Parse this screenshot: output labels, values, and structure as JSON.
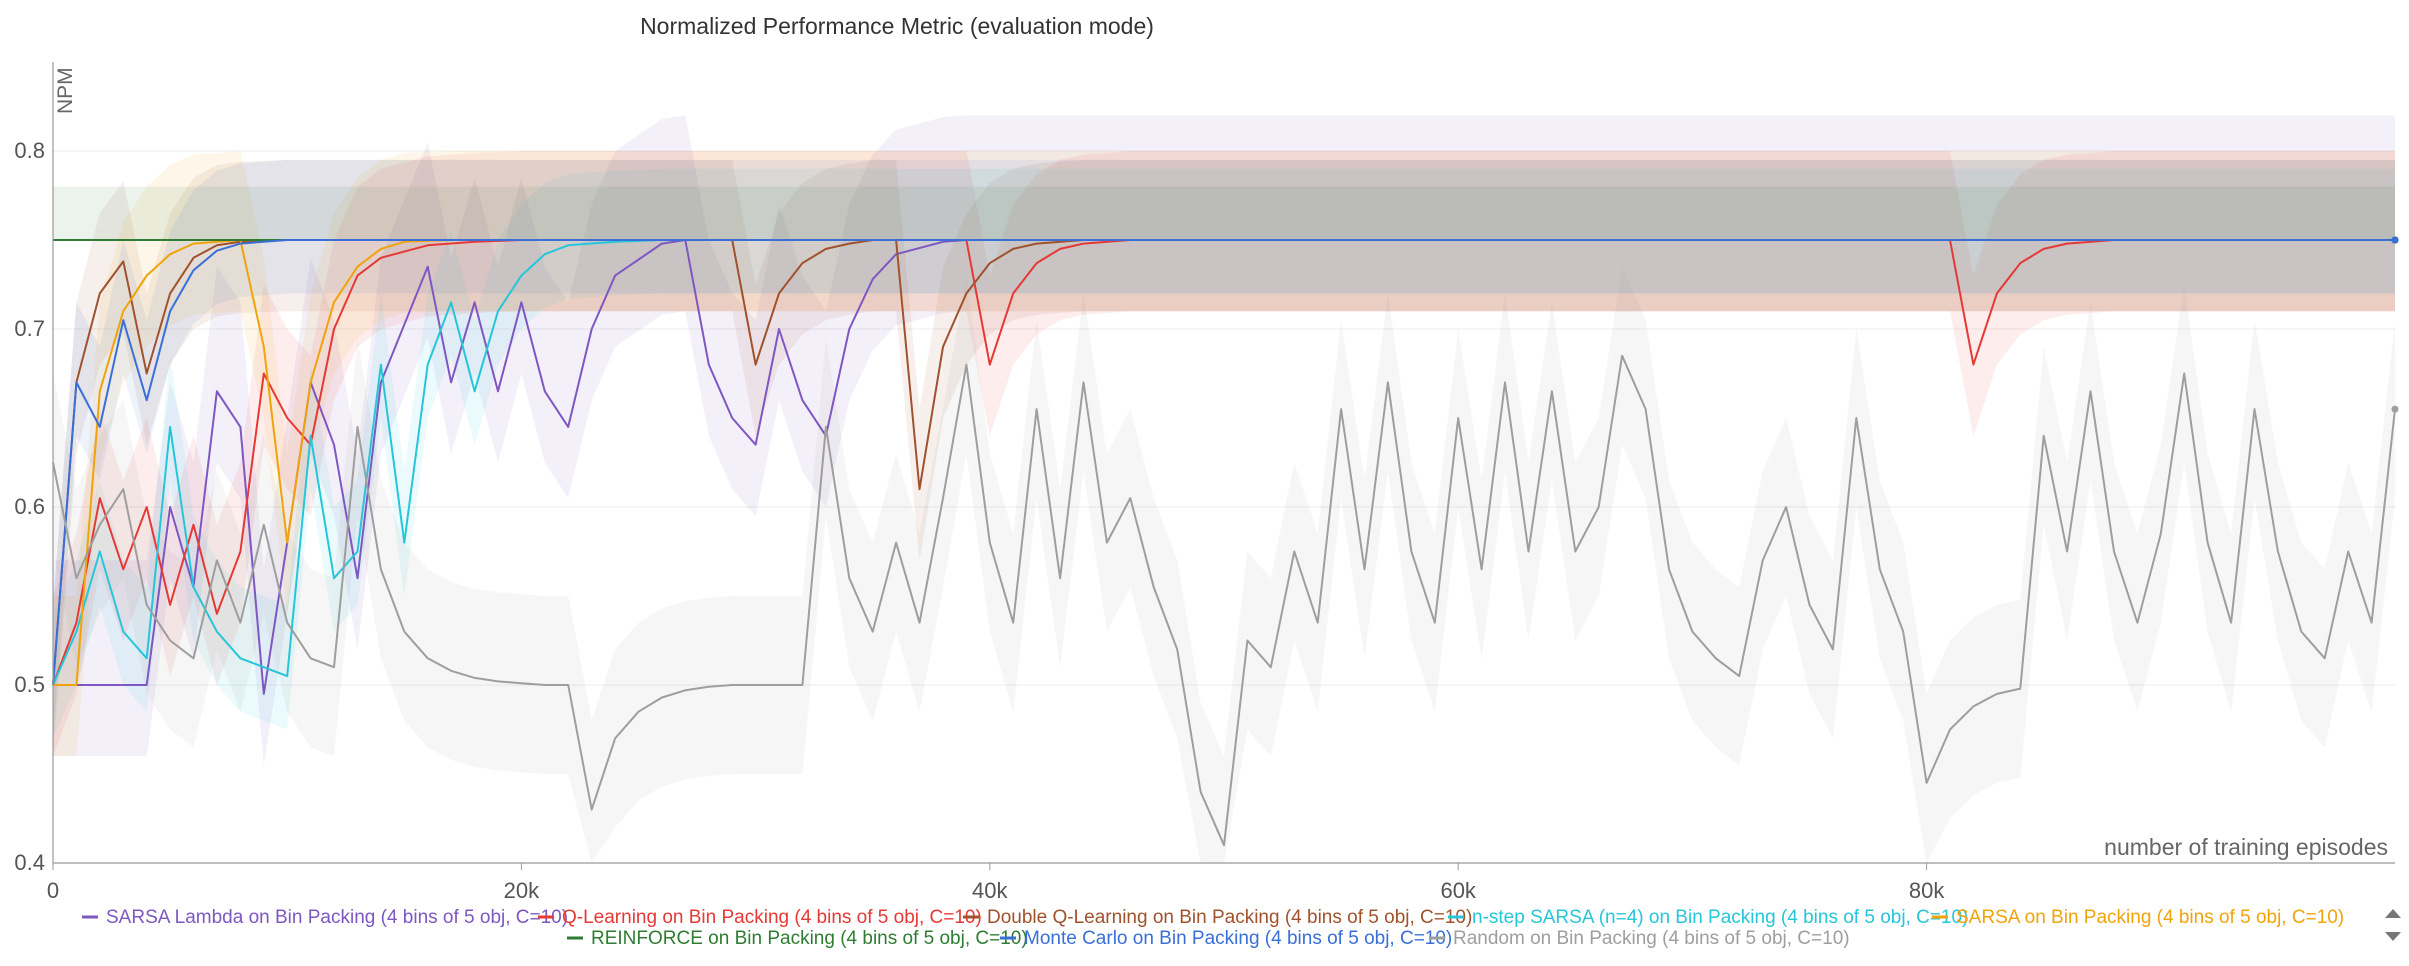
{
  "chart_data": {
    "type": "line",
    "title": "Normalized Performance Metric (evaluation mode)",
    "xlabel": "number of training episodes",
    "ylabel": "NPM",
    "xlim": [
      0,
      100000
    ],
    "ylim": [
      0.4,
      0.85
    ],
    "xticks": [
      0,
      20000,
      40000,
      60000,
      80000
    ],
    "xtick_labels": [
      "0",
      "20k",
      "40k",
      "60k",
      "80k"
    ],
    "yticks": [
      0.4,
      0.5,
      0.6,
      0.7,
      0.8
    ],
    "ytick_labels": [
      "0.4",
      "0.5",
      "0.6",
      "0.7",
      "0.8"
    ],
    "grid": true,
    "legend_position": "bottom",
    "series": [
      {
        "name": "SARSA Lambda on Bin Packing (4 bins of 5 obj, C=10)",
        "color": "#7e57c2",
        "x": [
          0,
          2000,
          4000,
          5000,
          6000,
          7000,
          8000,
          9000,
          10000,
          11000,
          12000,
          13000,
          14000,
          16000,
          17000,
          18000,
          19000,
          20000,
          21000,
          22000,
          23000,
          24000,
          26000,
          27000,
          28000,
          29000,
          30000,
          31000,
          32000,
          33000,
          34000,
          35000,
          36000,
          38000,
          39000,
          100000
        ],
        "y": [
          0.5,
          0.5,
          0.5,
          0.6,
          0.555,
          0.665,
          0.645,
          0.495,
          0.58,
          0.67,
          0.635,
          0.56,
          0.67,
          0.735,
          0.67,
          0.715,
          0.665,
          0.715,
          0.665,
          0.645,
          0.7,
          0.73,
          0.748,
          0.75,
          0.68,
          0.65,
          0.635,
          0.7,
          0.66,
          0.64,
          0.7,
          0.728,
          0.742,
          0.749,
          0.75,
          0.75
        ],
        "band": [
          0.07,
          0.04
        ]
      },
      {
        "name": "Q-Learning on Bin Packing (4 bins of 5 obj, C=10)",
        "color": "#e53935",
        "x": [
          0,
          1000,
          2000,
          3000,
          4000,
          5000,
          6000,
          7000,
          8000,
          9000,
          10000,
          11000,
          12000,
          13000,
          14000,
          16000,
          18000,
          20000,
          22000,
          39000,
          40000,
          41000,
          42000,
          43000,
          44000,
          46000,
          48000,
          81000,
          82000,
          83000,
          84000,
          85000,
          86000,
          88000,
          100000
        ],
        "y": [
          0.5,
          0.535,
          0.605,
          0.565,
          0.6,
          0.545,
          0.59,
          0.54,
          0.575,
          0.675,
          0.65,
          0.635,
          0.7,
          0.73,
          0.74,
          0.747,
          0.749,
          0.75,
          0.75,
          0.75,
          0.68,
          0.72,
          0.737,
          0.745,
          0.748,
          0.75,
          0.75,
          0.75,
          0.68,
          0.72,
          0.737,
          0.745,
          0.748,
          0.75,
          0.75
        ],
        "band": [
          0.05,
          0.04
        ]
      },
      {
        "name": "Double Q-Learning on Bin Packing (4 bins of 5 obj, C=10)",
        "color": "#a0522d",
        "x": [
          0,
          1000,
          2000,
          3000,
          4000,
          5000,
          6000,
          7000,
          8000,
          10000,
          12000,
          29000,
          30000,
          31000,
          32000,
          33000,
          34000,
          35000,
          36000,
          37000,
          38000,
          39000,
          40000,
          41000,
          42000,
          44000,
          46000,
          100000
        ],
        "y": [
          0.5,
          0.67,
          0.72,
          0.738,
          0.675,
          0.72,
          0.74,
          0.747,
          0.749,
          0.75,
          0.75,
          0.75,
          0.68,
          0.72,
          0.737,
          0.745,
          0.748,
          0.75,
          0.75,
          0.61,
          0.69,
          0.72,
          0.737,
          0.745,
          0.748,
          0.75,
          0.75,
          0.75
        ],
        "band": [
          0.045,
          0.04
        ]
      },
      {
        "name": "n-step SARSA (n=4) on Bin Packing (4 bins of 5 obj, C=10)",
        "color": "#26c6da",
        "x": [
          0,
          1000,
          2000,
          3000,
          4000,
          5000,
          6000,
          7000,
          8000,
          9000,
          10000,
          11000,
          12000,
          13000,
          14000,
          15000,
          16000,
          17000,
          18000,
          19000,
          20000,
          21000,
          22000,
          24000,
          26000,
          100000
        ],
        "y": [
          0.5,
          0.53,
          0.575,
          0.53,
          0.515,
          0.645,
          0.555,
          0.53,
          0.515,
          0.51,
          0.505,
          0.64,
          0.56,
          0.575,
          0.68,
          0.58,
          0.68,
          0.715,
          0.665,
          0.71,
          0.73,
          0.742,
          0.747,
          0.749,
          0.75,
          0.75
        ],
        "band": [
          0.04,
          0.03
        ]
      },
      {
        "name": "SARSA on Bin Packing (4 bins of 5 obj, C=10)",
        "color": "#f0a30a",
        "x": [
          0,
          1000,
          2000,
          3000,
          4000,
          5000,
          6000,
          8000,
          9000,
          10000,
          11000,
          12000,
          13000,
          14000,
          15000,
          17000,
          100000
        ],
        "y": [
          0.5,
          0.5,
          0.665,
          0.71,
          0.73,
          0.742,
          0.748,
          0.75,
          0.69,
          0.58,
          0.67,
          0.715,
          0.735,
          0.745,
          0.749,
          0.75,
          0.75
        ],
        "band": [
          0.05,
          0.04
        ]
      },
      {
        "name": "REINFORCE on Bin Packing (4 bins of 5 obj, C=10)",
        "color": "#2e7d32",
        "x": [
          0,
          100000
        ],
        "y": [
          0.75,
          0.75
        ],
        "band": [
          0.03,
          0.0
        ]
      },
      {
        "name": "Monte Carlo on Bin Packing (4 bins of 5 obj, C=10)",
        "color": "#3a6fd8",
        "x": [
          0,
          1000,
          2000,
          3000,
          4000,
          5000,
          6000,
          7000,
          8000,
          10000,
          12000,
          100000
        ],
        "y": [
          0.5,
          0.67,
          0.645,
          0.705,
          0.66,
          0.71,
          0.733,
          0.744,
          0.748,
          0.75,
          0.75,
          0.75
        ],
        "band": [
          0.045,
          0.03
        ]
      },
      {
        "name": "Random on Bin Packing (4 bins of 5 obj, C=10)",
        "color": "#9e9e9e",
        "x": [
          0,
          1000,
          2000,
          3000,
          4000,
          5000,
          6000,
          7000,
          8000,
          9000,
          10000,
          11000,
          12000,
          13000,
          14000,
          15000,
          16000,
          17000,
          18000,
          19000,
          20000,
          21000,
          22000,
          23000,
          24000,
          25000,
          26000,
          27000,
          28000,
          29000,
          30000,
          31000,
          32000,
          33000,
          34000,
          35000,
          36000,
          37000,
          38000,
          39000,
          40000,
          41000,
          42000,
          43000,
          44000,
          45000,
          46000,
          47000,
          48000,
          49000,
          50000,
          51000,
          52000,
          53000,
          54000,
          55000,
          56000,
          57000,
          58000,
          59000,
          60000,
          61000,
          62000,
          63000,
          64000,
          65000,
          66000,
          67000,
          68000,
          69000,
          70000,
          71000,
          72000,
          73000,
          74000,
          75000,
          76000,
          77000,
          78000,
          79000,
          80000,
          81000,
          82000,
          83000,
          84000,
          85000,
          86000,
          87000,
          88000,
          89000,
          90000,
          91000,
          92000,
          93000,
          94000,
          95000,
          96000,
          97000,
          98000,
          99000,
          100000
        ],
        "y": [
          0.625,
          0.56,
          0.59,
          0.61,
          0.545,
          0.525,
          0.515,
          0.57,
          0.535,
          0.59,
          0.535,
          0.515,
          0.51,
          0.645,
          0.565,
          0.53,
          0.515,
          0.508,
          0.504,
          0.502,
          0.501,
          0.5,
          0.5,
          0.43,
          0.47,
          0.485,
          0.493,
          0.497,
          0.499,
          0.5,
          0.5,
          0.5,
          0.5,
          0.645,
          0.56,
          0.53,
          0.58,
          0.535,
          0.605,
          0.68,
          0.58,
          0.535,
          0.655,
          0.56,
          0.67,
          0.58,
          0.605,
          0.555,
          0.52,
          0.44,
          0.41,
          0.525,
          0.51,
          0.575,
          0.535,
          0.655,
          0.565,
          0.67,
          0.575,
          0.535,
          0.65,
          0.565,
          0.67,
          0.575,
          0.665,
          0.575,
          0.6,
          0.685,
          0.655,
          0.565,
          0.53,
          0.515,
          0.505,
          0.57,
          0.6,
          0.545,
          0.52,
          0.65,
          0.565,
          0.53,
          0.445,
          0.475,
          0.488,
          0.495,
          0.498,
          0.64,
          0.575,
          0.665,
          0.575,
          0.535,
          0.585,
          0.675,
          0.58,
          0.535,
          0.655,
          0.575,
          0.53,
          0.515,
          0.575,
          0.535,
          0.655
        ],
        "band": [
          0.05,
          0.05
        ]
      }
    ]
  }
}
